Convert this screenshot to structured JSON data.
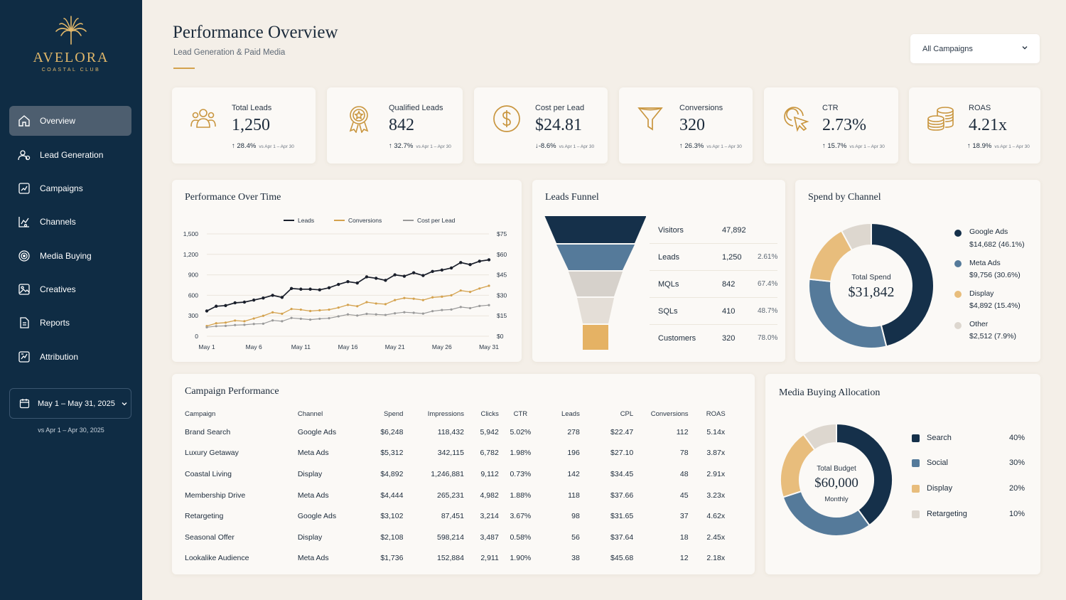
{
  "brand": {
    "name": "AVELORA",
    "subtitle": "COASTAL CLUB"
  },
  "sidebar": {
    "items": [
      {
        "label": "Overview",
        "icon": "home-icon",
        "active": true
      },
      {
        "label": "Lead Generation",
        "icon": "lead-generation-icon"
      },
      {
        "label": "Campaigns",
        "icon": "campaigns-icon"
      },
      {
        "label": "Channels",
        "icon": "channels-icon"
      },
      {
        "label": "Media Buying",
        "icon": "media-buying-icon"
      },
      {
        "label": "Creatives",
        "icon": "creatives-icon"
      },
      {
        "label": "Reports",
        "icon": "reports-icon"
      },
      {
        "label": "Attribution",
        "icon": "attribution-icon"
      }
    ],
    "date_range": "May 1 – May 31, 2025",
    "date_compare": "vs Apr 1 – Apr 30, 2025"
  },
  "header": {
    "title": "Performance Overview",
    "subtitle": "Lead Generation & Paid Media",
    "campaign_filter": "All Campaigns"
  },
  "kpis": [
    {
      "label": "Total Leads",
      "value": "1,250",
      "delta": "28.4%",
      "direction": "up",
      "compare": "vs Apr 1 – Apr 30",
      "icon": "users-icon"
    },
    {
      "label": "Qualified Leads",
      "value": "842",
      "delta": "32.7%",
      "direction": "up",
      "compare": "vs Apr 1 – Apr 30",
      "icon": "award-icon"
    },
    {
      "label": "Cost per Lead",
      "value": "$24.81",
      "delta": "-8.6%",
      "direction": "down",
      "compare": "vs Apr 1 – Apr 30",
      "icon": "dollar-icon"
    },
    {
      "label": "Conversions",
      "value": "320",
      "delta": "26.3%",
      "direction": "up",
      "compare": "vs Apr 1 – Apr 30",
      "icon": "funnel-icon"
    },
    {
      "label": "CTR",
      "value": "2.73%",
      "delta": "15.7%",
      "direction": "up",
      "compare": "vs Apr 1 – Apr 30",
      "icon": "click-icon"
    },
    {
      "label": "ROAS",
      "value": "4.21x",
      "delta": "18.9%",
      "direction": "up",
      "compare": "vs Apr 1 – Apr 30",
      "icon": "coins-icon"
    }
  ],
  "performance_chart": {
    "title": "Performance Over Time",
    "colors": {
      "leads": "#1a1f2b",
      "conversions": "#d4a24e",
      "cpl": "#9a9a9a"
    }
  },
  "chart_data": {
    "type": "line",
    "x": [
      "May 1",
      "May 2",
      "May 3",
      "May 4",
      "May 5",
      "May 6",
      "May 7",
      "May 8",
      "May 9",
      "May 10",
      "May 11",
      "May 12",
      "May 13",
      "May 14",
      "May 15",
      "May 16",
      "May 17",
      "May 18",
      "May 19",
      "May 20",
      "May 21",
      "May 22",
      "May 23",
      "May 24",
      "May 25",
      "May 26",
      "May 27",
      "May 28",
      "May 29",
      "May 30",
      "May 31"
    ],
    "x_tick_labels": [
      "May 1",
      "May 6",
      "May 11",
      "May 16",
      "May 21",
      "May 26",
      "May 31"
    ],
    "series": [
      {
        "name": "Leads",
        "axis": "left",
        "values": [
          370,
          440,
          450,
          490,
          500,
          530,
          560,
          600,
          570,
          700,
          690,
          690,
          680,
          710,
          760,
          800,
          780,
          870,
          850,
          820,
          900,
          880,
          930,
          890,
          950,
          970,
          1000,
          1080,
          1050,
          1100,
          1120
        ]
      },
      {
        "name": "Conversions",
        "axis": "left",
        "values": [
          150,
          190,
          200,
          230,
          220,
          260,
          300,
          350,
          330,
          400,
          390,
          370,
          380,
          390,
          420,
          460,
          440,
          500,
          480,
          470,
          530,
          560,
          550,
          530,
          570,
          580,
          600,
          670,
          650,
          700,
          740
        ]
      },
      {
        "name": "Cost per Lead",
        "axis": "right",
        "values": [
          6.6,
          7.4,
          7.6,
          8.2,
          8.4,
          9.0,
          9.2,
          11.6,
          11.0,
          13.4,
          12.8,
          12.2,
          12.8,
          13.2,
          14.6,
          16.0,
          15.2,
          16.4,
          16.0,
          15.6,
          16.8,
          17.6,
          17.2,
          16.6,
          18.4,
          19.2,
          19.6,
          21.4,
          20.6,
          22.2,
          22.8
        ]
      }
    ],
    "y_left_ticks": [
      "0",
      "300",
      "600",
      "900",
      "1,200",
      "1,500"
    ],
    "y_right_ticks": [
      "$0",
      "$15",
      "$30",
      "$45",
      "$60",
      "$75"
    ],
    "ylim_left": [
      0,
      1500
    ],
    "ylim_right": [
      0,
      75
    ],
    "legend": "top-center",
    "grid": "horizontal"
  },
  "funnel": {
    "title": "Leads Funnel",
    "stages": [
      {
        "stage": "Visitors",
        "count": "47,892",
        "pct": "",
        "color": "#15304a"
      },
      {
        "stage": "Leads",
        "count": "1,250",
        "pct": "2.61%",
        "color": "#557a9a"
      },
      {
        "stage": "MQLs",
        "count": "842",
        "pct": "67.4%",
        "color": "#d6d1cb"
      },
      {
        "stage": "SQLs",
        "count": "410",
        "pct": "48.7%",
        "color": "#e4ded7"
      },
      {
        "stage": "Customers",
        "count": "320",
        "pct": "78.0%",
        "color": "#e5b264"
      }
    ]
  },
  "spend_by_channel": {
    "title": "Spend by Channel",
    "center_label": "Total Spend",
    "center_value": "$31,842",
    "slices": [
      {
        "name": "Google Ads",
        "detail": "$14,682 (46.1%)",
        "value": 46.1,
        "color": "#15304a"
      },
      {
        "name": "Meta Ads",
        "detail": "$9,756 (30.6%)",
        "value": 30.6,
        "color": "#557a9a"
      },
      {
        "name": "Display",
        "detail": "$4,892 (15.4%)",
        "value": 15.4,
        "color": "#e8bd7c"
      },
      {
        "name": "Other",
        "detail": "$2,512 (7.9%)",
        "value": 7.9,
        "color": "#ddd7cf"
      }
    ]
  },
  "campaign_table": {
    "title": "Campaign Performance",
    "columns": [
      "Campaign",
      "Channel",
      "Spend",
      "Impressions",
      "Clicks",
      "CTR",
      "Leads",
      "CPL",
      "Conversions",
      "ROAS"
    ],
    "rows": [
      [
        "Brand Search",
        "Google Ads",
        "$6,248",
        "118,432",
        "5,942",
        "5.02%",
        "278",
        "$22.47",
        "112",
        "5.14x"
      ],
      [
        "Luxury Getaway",
        "Meta Ads",
        "$5,312",
        "342,115",
        "6,782",
        "1.98%",
        "196",
        "$27.10",
        "78",
        "3.87x"
      ],
      [
        "Coastal Living",
        "Display",
        "$4,892",
        "1,246,881",
        "9,112",
        "0.73%",
        "142",
        "$34.45",
        "48",
        "2.91x"
      ],
      [
        "Membership Drive",
        "Meta Ads",
        "$4,444",
        "265,231",
        "4,982",
        "1.88%",
        "118",
        "$37.66",
        "45",
        "3.23x"
      ],
      [
        "Retargeting",
        "Google Ads",
        "$3,102",
        "87,451",
        "3,214",
        "3.67%",
        "98",
        "$31.65",
        "37",
        "4.62x"
      ],
      [
        "Seasonal Offer",
        "Display",
        "$2,108",
        "598,214",
        "3,487",
        "0.58%",
        "56",
        "$37.64",
        "18",
        "2.45x"
      ],
      [
        "Lookalike Audience",
        "Meta Ads",
        "$1,736",
        "152,884",
        "2,911",
        "1.90%",
        "38",
        "$45.68",
        "12",
        "2.18x"
      ]
    ]
  },
  "media_allocation": {
    "title": "Media Buying Allocation",
    "center_label": "Total Budget",
    "center_value": "$60,000",
    "center_sub": "Monthly",
    "slices": [
      {
        "name": "Search",
        "pct": "40%",
        "value": 40,
        "color": "#15304a"
      },
      {
        "name": "Social",
        "pct": "30%",
        "value": 30,
        "color": "#557a9a"
      },
      {
        "name": "Display",
        "pct": "20%",
        "value": 20,
        "color": "#e8bd7c"
      },
      {
        "name": "Retargeting",
        "pct": "10%",
        "value": 10,
        "color": "#ddd7cf"
      }
    ]
  }
}
